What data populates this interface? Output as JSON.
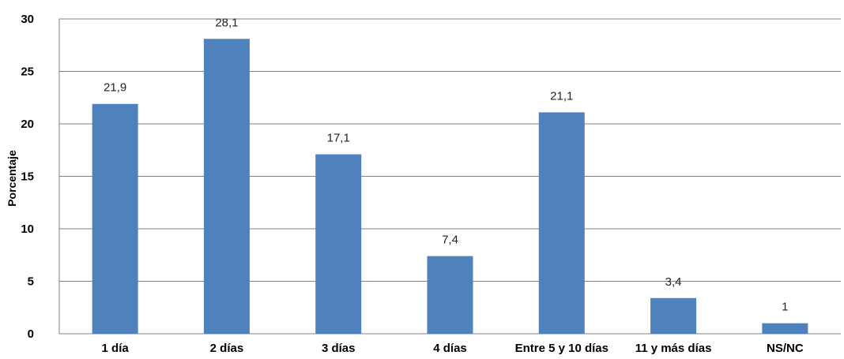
{
  "chart_data": {
    "type": "bar",
    "categories": [
      "1 día",
      "2 días",
      "3 días",
      "4 días",
      "Entre 5 y 10 días",
      "11 y más días",
      "NS/NC"
    ],
    "values": [
      21.9,
      28.1,
      17.1,
      7.4,
      21.1,
      3.4,
      1
    ],
    "data_labels": [
      "21,9",
      "28,1",
      "17,1",
      "7,4",
      "21,1",
      "3,4",
      "1"
    ],
    "ylabel": "Porcentaje",
    "ylim": [
      0,
      30
    ],
    "yticks": [
      0,
      5,
      10,
      15,
      20,
      25,
      30
    ],
    "ytick_labels": [
      "0",
      "5",
      "10",
      "15",
      "20",
      "25",
      "30"
    ],
    "grid": true,
    "bar_color": "#4f81bd"
  }
}
